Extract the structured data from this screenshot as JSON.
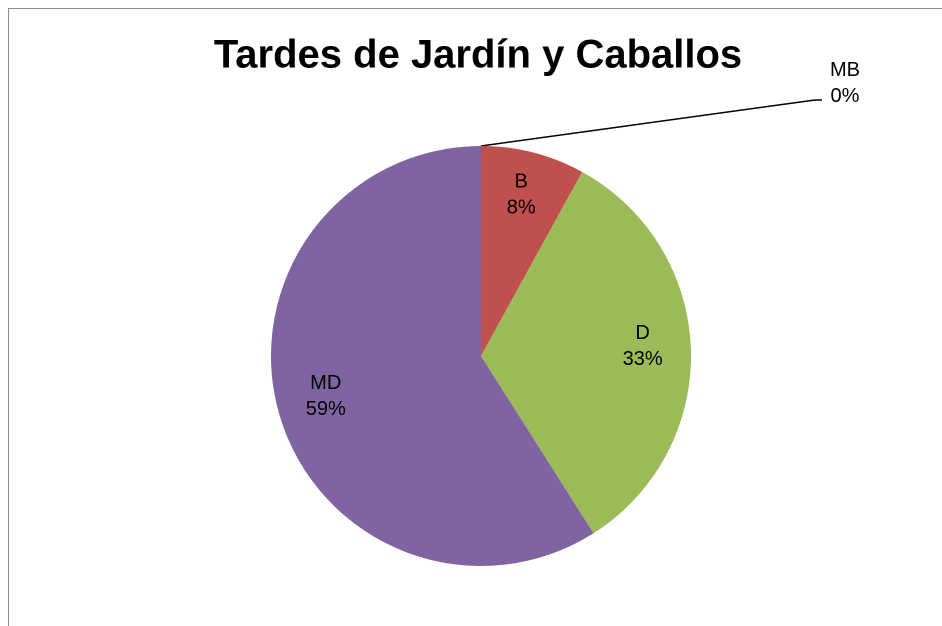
{
  "chart_data": {
    "type": "pie",
    "title": "Tardes de Jardín y Caballos",
    "categories": [
      "MB",
      "B",
      "D",
      "MD"
    ],
    "values": [
      0,
      8,
      33,
      59
    ],
    "value_labels": [
      "0%",
      "8%",
      "33%",
      "59%"
    ],
    "colors": [
      "#4f81bd",
      "#c0504d",
      "#9bbb59",
      "#8064a2"
    ]
  }
}
